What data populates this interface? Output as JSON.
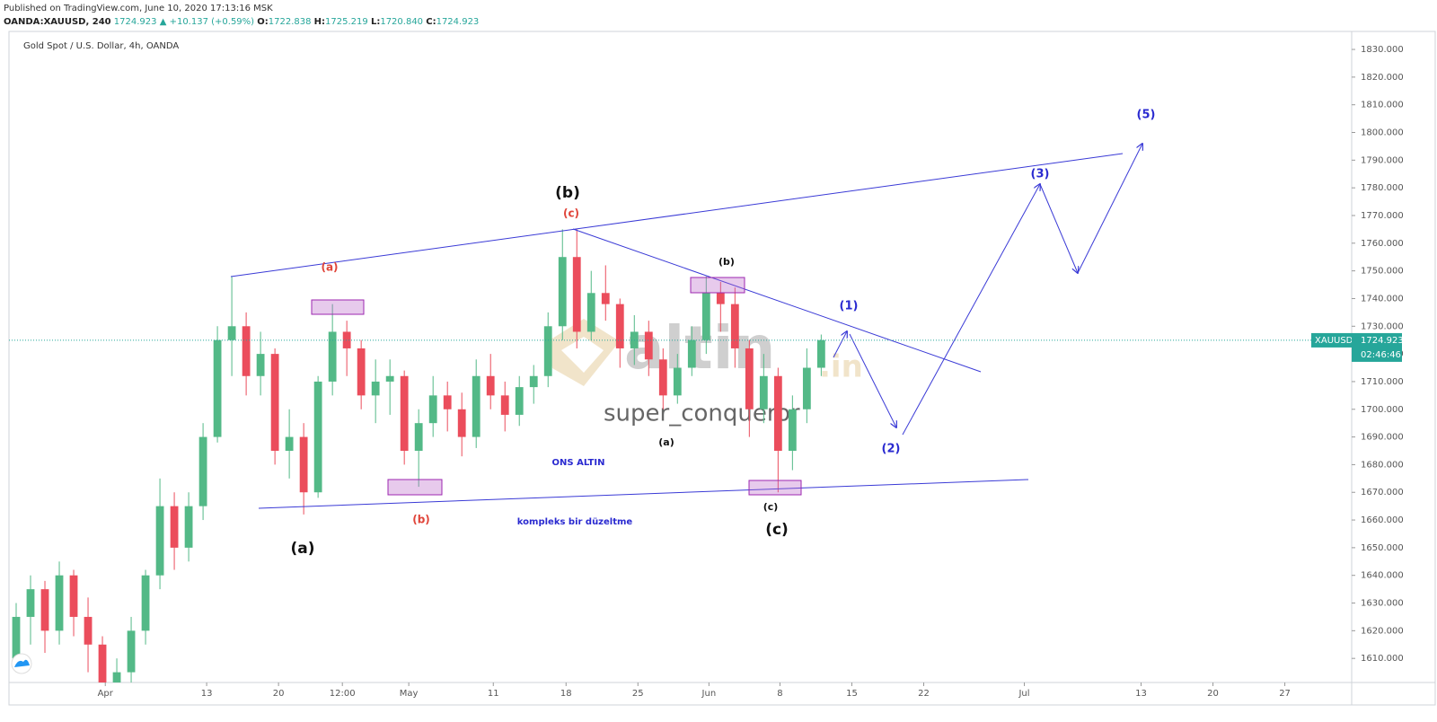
{
  "header": {
    "published": "Published on TradingView.com, June 10, 2020 17:13:16 MSK",
    "symbol": "OANDA:XAUUSD, 240",
    "last": "1724.923",
    "change": "▲ +10.137 (+0.59%)",
    "o_label": "O:",
    "o": "1722.838",
    "h_label": "H:",
    "h": "1725.219",
    "l_label": "L:",
    "l": "1720.840",
    "c_label": "C:",
    "c": "1724.923"
  },
  "chart_data": {
    "type": "candlestick",
    "title": "Gold Spot / U.S. Dollar, 4h, OANDA",
    "up_color": "#53b987",
    "down_color": "#eb4d5c",
    "x": [
      0.5,
      1.5,
      2.5,
      3.5,
      4.5,
      5.5,
      6.5,
      7.5,
      8.5,
      9.5,
      10.5,
      11.5,
      12.5,
      13.5,
      14.5,
      15.5,
      16.5,
      17.5,
      18.5,
      19.5,
      20.5,
      21.5,
      22.5,
      23.5,
      24.5,
      25.5,
      26.5,
      27.5,
      28.5,
      29.5,
      30.5,
      31.5,
      32.5,
      33.5,
      34.5,
      35.5,
      36.5,
      37.5,
      38.5,
      39.5,
      40.5,
      41.5,
      42.5,
      43.5,
      44.5,
      45.5,
      46.5,
      47.5,
      48.5,
      49.5,
      50.5,
      51.5,
      52.5,
      53.5,
      54.5,
      55.5,
      56.5
    ],
    "open": [
      1610,
      1625,
      1635,
      1620,
      1640,
      1625,
      1615,
      1600,
      1605,
      1620,
      1640,
      1665,
      1650,
      1665,
      1690,
      1725,
      1730,
      1712,
      1720,
      1685,
      1690,
      1670,
      1710,
      1728,
      1722,
      1705,
      1710,
      1712,
      1685,
      1695,
      1705,
      1700,
      1690,
      1712,
      1705,
      1698,
      1708,
      1712,
      1730,
      1755,
      1728,
      1742,
      1738,
      1722,
      1728,
      1718,
      1705,
      1715,
      1725,
      1742,
      1738,
      1722,
      1700,
      1712,
      1685,
      1700,
      1715
    ],
    "high": [
      1630,
      1640,
      1638,
      1645,
      1642,
      1632,
      1618,
      1610,
      1625,
      1642,
      1675,
      1670,
      1670,
      1695,
      1730,
      1748,
      1735,
      1728,
      1722,
      1700,
      1695,
      1712,
      1738,
      1732,
      1725,
      1718,
      1718,
      1714,
      1700,
      1712,
      1710,
      1706,
      1718,
      1720,
      1710,
      1712,
      1716,
      1735,
      1765,
      1765,
      1750,
      1752,
      1740,
      1734,
      1732,
      1722,
      1720,
      1730,
      1748,
      1746,
      1744,
      1725,
      1720,
      1715,
      1705,
      1722,
      1727
    ],
    "low": [
      1605,
      1615,
      1612,
      1615,
      1618,
      1605,
      1595,
      1590,
      1600,
      1615,
      1635,
      1642,
      1645,
      1660,
      1688,
      1712,
      1705,
      1705,
      1680,
      1675,
      1662,
      1668,
      1705,
      1712,
      1700,
      1695,
      1698,
      1680,
      1672,
      1690,
      1692,
      1683,
      1686,
      1700,
      1692,
      1694,
      1702,
      1708,
      1725,
      1722,
      1725,
      1732,
      1715,
      1716,
      1712,
      1700,
      1702,
      1712,
      1720,
      1728,
      1715,
      1690,
      1695,
      1670,
      1678,
      1695,
      1712
    ],
    "close": [
      1625,
      1635,
      1620,
      1640,
      1625,
      1615,
      1600,
      1605,
      1620,
      1640,
      1665,
      1650,
      1665,
      1690,
      1725,
      1730,
      1712,
      1720,
      1685,
      1690,
      1670,
      1710,
      1728,
      1722,
      1705,
      1710,
      1712,
      1685,
      1695,
      1705,
      1700,
      1690,
      1712,
      1705,
      1698,
      1708,
      1712,
      1730,
      1755,
      1728,
      1742,
      1738,
      1722,
      1728,
      1718,
      1705,
      1715,
      1725,
      1742,
      1738,
      1722,
      1700,
      1712,
      1685,
      1700,
      1715,
      1725
    ],
    "xlim": [
      0,
      93.4
    ],
    "xticks": [
      {
        "value": 6.7,
        "label": "Apr"
      },
      {
        "value": 13.75,
        "label": "13"
      },
      {
        "value": 18.75,
        "label": "20"
      },
      {
        "value": 23.19,
        "label": "12:00"
      },
      {
        "value": 27.81,
        "label": "May"
      },
      {
        "value": 33.69,
        "label": "11"
      },
      {
        "value": 38.75,
        "label": "18"
      },
      {
        "value": 43.75,
        "label": "25"
      },
      {
        "value": 48.69,
        "label": "Jun"
      },
      {
        "value": 53.63,
        "label": "8"
      },
      {
        "value": 58.63,
        "label": "15"
      },
      {
        "value": 63.63,
        "label": "22"
      },
      {
        "value": 70.63,
        "label": "Jul"
      },
      {
        "value": 78.75,
        "label": "13"
      },
      {
        "value": 83.75,
        "label": "20"
      },
      {
        "value": 88.75,
        "label": "27"
      }
    ],
    "ylim": [
      1601.3,
      1836.5
    ],
    "yticks": [
      {
        "value": 1610,
        "label": "1610.000"
      },
      {
        "value": 1620,
        "label": "1620.000"
      },
      {
        "value": 1630,
        "label": "1630.000"
      },
      {
        "value": 1640,
        "label": "1640.000"
      },
      {
        "value": 1650,
        "label": "1650.000"
      },
      {
        "value": 1660,
        "label": "1660.000"
      },
      {
        "value": 1670,
        "label": "1670.000"
      },
      {
        "value": 1680,
        "label": "1680.000"
      },
      {
        "value": 1690,
        "label": "1690.000"
      },
      {
        "value": 1700,
        "label": "1700.000"
      },
      {
        "value": 1710,
        "label": "1710.000"
      },
      {
        "value": 1720,
        "label": "1720.000"
      },
      {
        "value": 1730,
        "label": "1730.000"
      },
      {
        "value": 1740,
        "label": "1740.000"
      },
      {
        "value": 1750,
        "label": "1750.000"
      },
      {
        "value": 1760,
        "label": "1760.000"
      },
      {
        "value": 1770,
        "label": "1770.000"
      },
      {
        "value": 1780,
        "label": "1780.000"
      },
      {
        "value": 1790,
        "label": "1790.000"
      },
      {
        "value": 1800,
        "label": "1800.000"
      },
      {
        "value": 1810,
        "label": "1810.000"
      },
      {
        "value": 1820,
        "label": "1820.000"
      },
      {
        "value": 1830,
        "label": "1830.000"
      }
    ],
    "last_price": 1724.923,
    "price_tag_symbol": "XAUUSD",
    "countdown": "02:46:46"
  },
  "annotations": [
    "(b)",
    "(c)",
    "(a)",
    "(a)",
    "(b)",
    "(b)",
    "(a)",
    "(c)",
    "(c)",
    "ONS ALTIN",
    "kompleks bir düzeltme",
    "(1)",
    "(2)",
    "(3)",
    "(5)"
  ],
  "watermark": {
    "brand": "altin",
    "tld": ".in",
    "author": "super_conqueror"
  }
}
